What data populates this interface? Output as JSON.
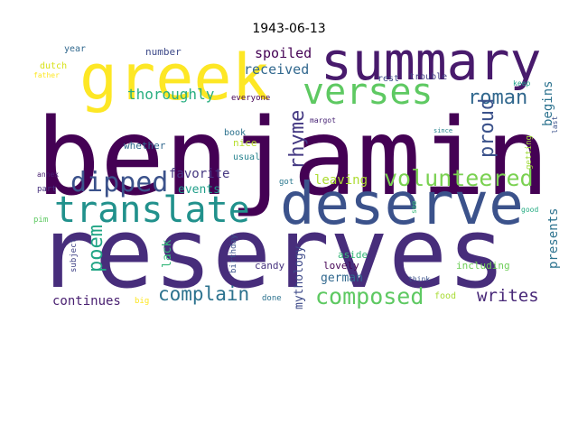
{
  "title": "1943-06-13",
  "words": [
    {
      "text": "benjamin",
      "color": "#440154"
    },
    {
      "text": "reserves",
      "color": "#472d7b"
    },
    {
      "text": "deserve",
      "color": "#3b528b"
    },
    {
      "text": "summary",
      "color": "#481a6c"
    },
    {
      "text": "greek",
      "color": "#fde725"
    },
    {
      "text": "translate",
      "color": "#21918c"
    },
    {
      "text": "verses",
      "color": "#5ec962"
    },
    {
      "text": "dipped",
      "color": "#3b528b"
    },
    {
      "text": "volunteered",
      "color": "#7ad151"
    },
    {
      "text": "composed",
      "color": "#5ec962"
    },
    {
      "text": "complain",
      "color": "#2c728e"
    },
    {
      "text": "roman",
      "color": "#31688e"
    },
    {
      "text": "rhyme",
      "color": "#443983"
    },
    {
      "text": "proud",
      "color": "#3b528b"
    },
    {
      "text": "writes",
      "color": "#482878"
    },
    {
      "text": "poem",
      "color": "#21a585"
    },
    {
      "text": "thoroughly",
      "color": "#28ae80"
    },
    {
      "text": "received",
      "color": "#31688e"
    },
    {
      "text": "spoiled",
      "color": "#440154"
    },
    {
      "text": "favorite",
      "color": "#453781"
    },
    {
      "text": "events",
      "color": "#1f9e89"
    },
    {
      "text": "leaving",
      "color": "#addc30"
    },
    {
      "text": "begins",
      "color": "#2c728e"
    },
    {
      "text": "presents",
      "color": "#2c728e"
    },
    {
      "text": "continues",
      "color": "#481f70"
    },
    {
      "text": "mythology",
      "color": "#3e4a89"
    },
    {
      "text": "german",
      "color": "#31688e"
    },
    {
      "text": "lack",
      "color": "#35b779"
    },
    {
      "text": "including",
      "color": "#6ece58"
    },
    {
      "text": "lovely",
      "color": "#440154"
    },
    {
      "text": "aside",
      "color": "#35b779"
    },
    {
      "text": "candy",
      "color": "#46327e"
    },
    {
      "text": "whether",
      "color": "#31688e"
    },
    {
      "text": "nice",
      "color": "#b5de2b"
    },
    {
      "text": "usual",
      "color": "#26828e"
    },
    {
      "text": "book",
      "color": "#2c728e"
    },
    {
      "text": "number",
      "color": "#3e4a89"
    },
    {
      "text": "year",
      "color": "#31688e"
    },
    {
      "text": "dutch",
      "color": "#d8e219"
    },
    {
      "text": "father",
      "color": "#fde725"
    },
    {
      "text": "everyone",
      "color": "#440154"
    },
    {
      "text": "margot",
      "color": "#482475"
    },
    {
      "text": "trouble",
      "color": "#433e85"
    },
    {
      "text": "rest",
      "color": "#3e4a89"
    },
    {
      "text": "keep",
      "color": "#1f9e89"
    },
    {
      "text": "last",
      "color": "#3b528b"
    },
    {
      "text": "since",
      "color": "#26828e"
    },
    {
      "text": "getting",
      "color": "#9fda3a"
    },
    {
      "text": "got",
      "color": "#2a788e"
    },
    {
      "text": "see",
      "color": "#37b878"
    },
    {
      "text": "good",
      "color": "#25ab82"
    },
    {
      "text": "annex",
      "color": "#481f70"
    },
    {
      "text": "part",
      "color": "#46307e"
    },
    {
      "text": "pim",
      "color": "#5ec962"
    },
    {
      "text": "subject",
      "color": "#414487"
    },
    {
      "text": "birthday",
      "color": "#3b528b"
    },
    {
      "text": "big",
      "color": "#fde725"
    },
    {
      "text": "done",
      "color": "#2c728e"
    },
    {
      "text": "think",
      "color": "#3b528b"
    },
    {
      "text": "food",
      "color": "#a8db34"
    }
  ]
}
